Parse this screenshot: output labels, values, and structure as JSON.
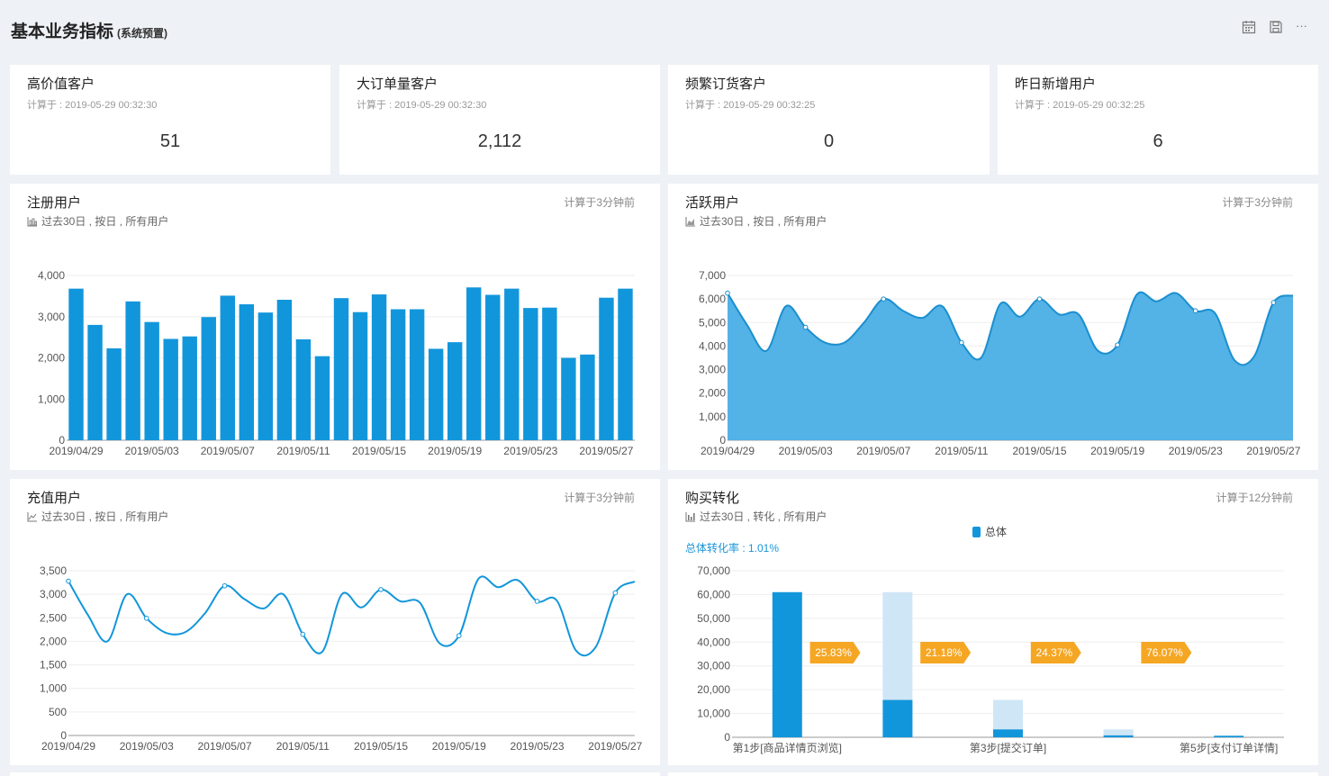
{
  "header": {
    "title": "基本业务指标",
    "subtitle": "(系统预置)",
    "icons": [
      "calendar-icon",
      "save-icon",
      "more-icon"
    ],
    "more": "···"
  },
  "kpis": [
    {
      "name": "高价值客户",
      "time": "计算于 : 2019-05-29 00:32:30",
      "value": "51"
    },
    {
      "name": "大订单量客户",
      "time": "计算于 : 2019-05-29 00:32:30",
      "value": "2,112"
    },
    {
      "name": "频繁订货客户",
      "time": "计算于 : 2019-05-29 00:32:25",
      "value": "0"
    },
    {
      "name": "昨日新增用户",
      "time": "计算于 : 2019-05-29 00:32:25",
      "value": "6"
    }
  ],
  "panels": {
    "register": {
      "title": "注册用户",
      "subtitle": "过去30日 , 按日 , 所有用户",
      "calc": "计算于3分钟前"
    },
    "active": {
      "title": "活跃用户",
      "subtitle": "过去30日 , 按日 , 所有用户",
      "calc": "计算于3分钟前"
    },
    "recharge": {
      "title": "充值用户",
      "subtitle": "过去30日 , 按日 , 所有用户",
      "calc": "计算于3分钟前"
    },
    "funnel": {
      "title": "购买转化",
      "subtitle": "过去30日 , 转化 , 所有用户",
      "calc": "计算于12分钟前",
      "rate": "总体转化率 : 1.01%",
      "legend": "总体"
    }
  },
  "colors": {
    "primary": "#1296db",
    "light": "#cfe6f6",
    "area": "#4aaee5",
    "tag": "#f5a623",
    "bg": "#eef1f5"
  },
  "chart_data": [
    {
      "type": "bar",
      "xticks": [
        "2019/04/29",
        "2019/05/03",
        "2019/05/07",
        "2019/05/11",
        "2019/05/15",
        "2019/05/19",
        "2019/05/23",
        "2019/05/27"
      ],
      "x": [
        "2019/04/29",
        "2019/04/30",
        "2019/05/01",
        "2019/05/02",
        "2019/05/03",
        "2019/05/04",
        "2019/05/05",
        "2019/05/06",
        "2019/05/07",
        "2019/05/08",
        "2019/05/09",
        "2019/05/10",
        "2019/05/11",
        "2019/05/12",
        "2019/05/13",
        "2019/05/14",
        "2019/05/15",
        "2019/05/16",
        "2019/05/17",
        "2019/05/18",
        "2019/05/19",
        "2019/05/20",
        "2019/05/21",
        "2019/05/22",
        "2019/05/23",
        "2019/05/24",
        "2019/05/25",
        "2019/05/26",
        "2019/05/27",
        "2019/05/28"
      ],
      "values": [
        3680,
        2800,
        2230,
        3370,
        2870,
        2460,
        2520,
        2990,
        3510,
        3300,
        3100,
        3410,
        2450,
        2040,
        3450,
        3110,
        3540,
        3180,
        3180,
        2220,
        2380,
        3710,
        3530,
        3680,
        3210,
        3220,
        2000,
        2080,
        3460,
        3680
      ],
      "yticks": [
        0,
        1000,
        2000,
        3000,
        4000
      ],
      "ylim": [
        0,
        4000
      ]
    },
    {
      "type": "area",
      "xticks": [
        "2019/04/29",
        "2019/05/03",
        "2019/05/07",
        "2019/05/11",
        "2019/05/15",
        "2019/05/19",
        "2019/05/23",
        "2019/05/27"
      ],
      "values": [
        6250,
        4900,
        3800,
        5700,
        4800,
        4150,
        4150,
        5000,
        6000,
        5500,
        5200,
        5700,
        4150,
        3500,
        5800,
        5250,
        6000,
        5350,
        5350,
        3800,
        4050,
        6200,
        5900,
        6250,
        5500,
        5400,
        3400,
        3550,
        5850,
        6150
      ],
      "yticks": [
        0,
        1000,
        2000,
        3000,
        4000,
        5000,
        6000,
        7000
      ],
      "ylim": [
        0,
        7000
      ]
    },
    {
      "type": "line",
      "xticks": [
        "2019/04/29",
        "2019/05/03",
        "2019/05/07",
        "2019/05/11",
        "2019/05/15",
        "2019/05/19",
        "2019/05/23",
        "2019/05/27"
      ],
      "values": [
        3280,
        2560,
        2000,
        3000,
        2490,
        2180,
        2200,
        2600,
        3180,
        2900,
        2700,
        3000,
        2150,
        1780,
        3000,
        2720,
        3100,
        2850,
        2820,
        1960,
        2120,
        3330,
        3150,
        3300,
        2850,
        2870,
        1800,
        1880,
        3030,
        3270
      ],
      "yticks": [
        0,
        500,
        1000,
        1500,
        2000,
        2500,
        3000,
        3500
      ],
      "ylim": [
        0,
        3500
      ]
    },
    {
      "type": "bar",
      "steps": [
        "第1步[商品详情页浏览]",
        "",
        "第3步[提交订单]",
        "",
        "第5步[支付订单详情]"
      ],
      "series": [
        {
          "name": "总体",
          "values": [
            61000,
            15700,
            3300,
            800,
            620
          ]
        }
      ],
      "previous": [
        null,
        61000,
        15700,
        3300,
        800
      ],
      "rates": [
        "25.83%",
        "21.18%",
        "24.37%",
        "76.07%"
      ],
      "yticks": [
        0,
        10000,
        20000,
        30000,
        40000,
        50000,
        60000,
        70000
      ],
      "ylim": [
        0,
        70000
      ]
    }
  ]
}
